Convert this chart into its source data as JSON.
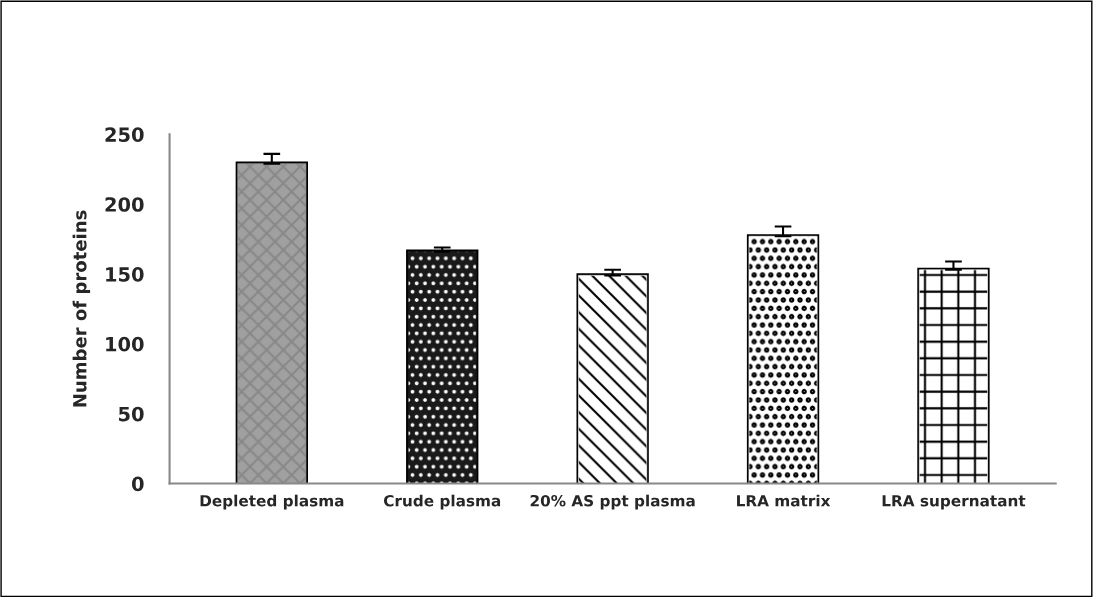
{
  "chart_data": {
    "type": "bar",
    "ylabel": "Number of proteins",
    "categories": [
      "Depleted plasma",
      "Crude plasma",
      "20% AS ppt plasma",
      "LRA matrix",
      "LRA supernatant"
    ],
    "values": [
      229,
      166,
      149,
      177,
      153
    ],
    "errors": [
      7,
      3,
      4,
      7,
      6
    ],
    "colors": [
      "#a0a0a0",
      "#1a1a1a",
      "#ffffff",
      "#ffffff",
      "#ffffff"
    ],
    "ylim": [
      0,
      250
    ],
    "yticks": [
      0,
      50,
      100,
      150,
      200,
      250
    ]
  }
}
